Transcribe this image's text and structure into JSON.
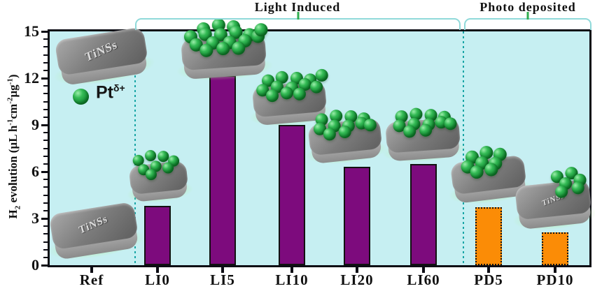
{
  "chart_data": {
    "type": "bar",
    "title": "",
    "categories": [
      "Ref",
      "LI0",
      "LI5",
      "LI10",
      "LI20",
      "LI60",
      "PD5",
      "PD10"
    ],
    "values": [
      0,
      3.8,
      12.2,
      9.0,
      6.3,
      6.5,
      3.7,
      2.1
    ],
    "bar_colors": [
      null,
      "#7d0b7d",
      "#7d0b7d",
      "#7d0b7d",
      "#7d0b7d",
      "#7d0b7d",
      "#fb8c06",
      "#fb8c06"
    ],
    "bar_border_styles": [
      null,
      "solid",
      "solid",
      "solid",
      "solid",
      "solid",
      "dotted",
      "dotted"
    ],
    "ylim": [
      0,
      15
    ],
    "yticks": [
      0,
      3,
      6,
      9,
      12,
      15
    ],
    "minor_tick_step": 0.5,
    "grid": false,
    "plot_background": "#c6eff2",
    "ylabel_parts": [
      {
        "t": "H"
      },
      {
        "sub": "2"
      },
      {
        "t": " evolution (µL h"
      },
      {
        "sup": "-1"
      },
      {
        "t": "cm"
      },
      {
        "sup": "-2"
      },
      {
        "t": "µg"
      },
      {
        "sup": "-1"
      },
      {
        "t": ")"
      }
    ],
    "groups": [
      {
        "label": "Light Induced",
        "categories": [
          "LI0",
          "LI5",
          "LI10",
          "LI20",
          "LI60"
        ]
      },
      {
        "label": "Photo deposited",
        "categories": [
          "PD5",
          "PD10"
        ]
      }
    ]
  },
  "legend": {
    "marker": "green-sphere",
    "label_base": "Pt",
    "label_sup": "δ+"
  },
  "illustrations": {
    "description": "gray TiNSs nanosheet platelets decorated with green Pt nanoparticles",
    "items": [
      {
        "name": "platelet-bare-top",
        "label": "TiNSs",
        "sphere_count": 0
      },
      {
        "name": "platelet-ref",
        "label": "TiNSs",
        "sphere_count": 0
      },
      {
        "name": "platelet-li0",
        "label": "",
        "sphere_count": 8
      },
      {
        "name": "platelet-li5",
        "label": "",
        "sphere_count": 17
      },
      {
        "name": "platelet-li10",
        "label": "",
        "sphere_count": 13
      },
      {
        "name": "platelet-li20",
        "label": "",
        "sphere_count": 11
      },
      {
        "name": "platelet-li60",
        "label": "",
        "sphere_count": 11
      },
      {
        "name": "platelet-pd5",
        "label": "",
        "sphere_count": 8
      },
      {
        "name": "platelet-pd10",
        "label": "TiNSs",
        "sphere_count": 6
      }
    ]
  },
  "colors": {
    "bar_purple": "#7d0b7d",
    "bar_orange": "#fb8c06",
    "plot_background": "#c6eff2",
    "bracket": "#8fd9d9",
    "bracket_tick": "#2fae4f",
    "separator": "#17a5a5",
    "axis": "#0c0c14",
    "sphere_green": "#17923a"
  }
}
